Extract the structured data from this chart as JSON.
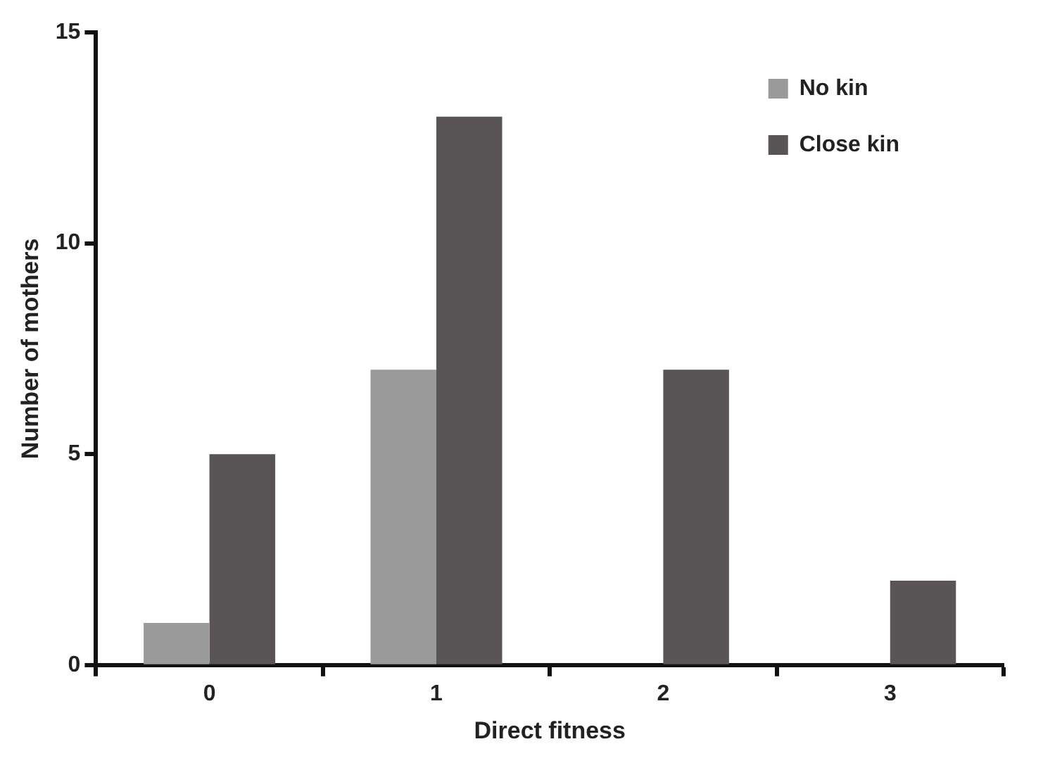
{
  "chart_data": {
    "type": "bar",
    "xlabel": "Direct fitness",
    "ylabel": "Number of mothers",
    "categories": [
      "0",
      "1",
      "2",
      "3"
    ],
    "series": [
      {
        "name": "No kin",
        "color": "#9a9a9a",
        "values": [
          1,
          7,
          0,
          0
        ]
      },
      {
        "name": "Close kin",
        "color": "#595556",
        "values": [
          5,
          13,
          7,
          2
        ]
      }
    ],
    "ylim": [
      0,
      15
    ],
    "yticks": [
      0,
      5,
      10,
      15
    ],
    "grid": false,
    "legend": "top right"
  }
}
